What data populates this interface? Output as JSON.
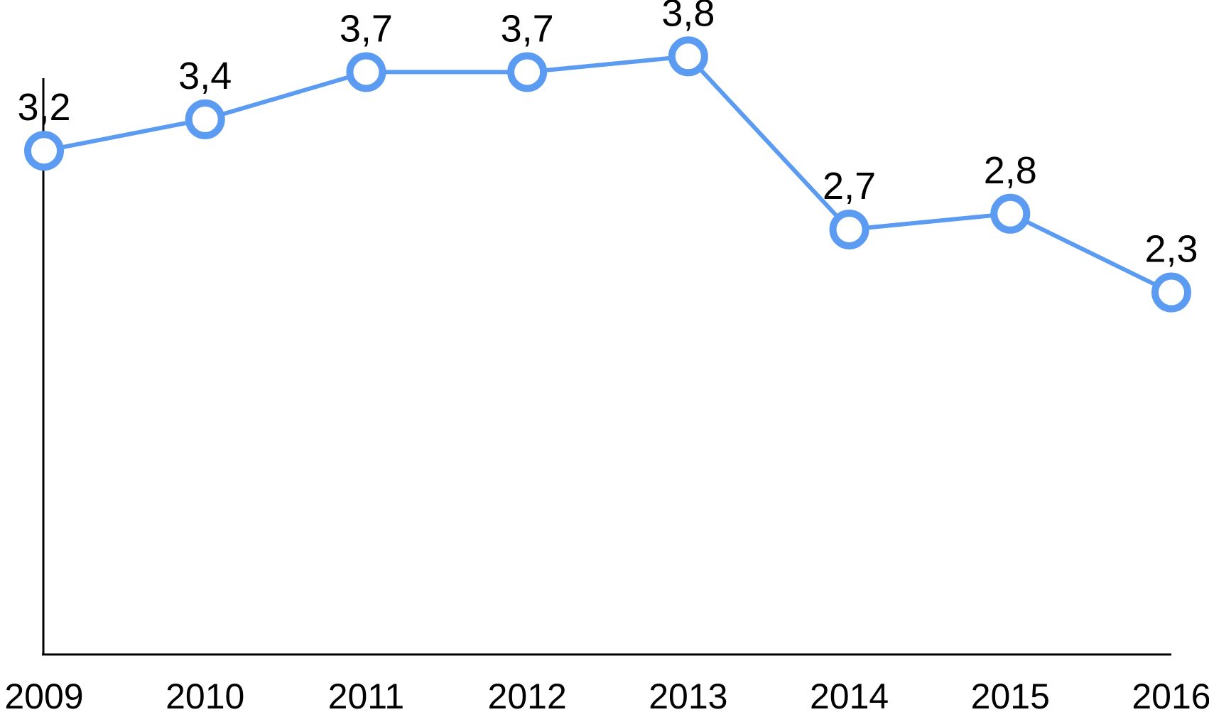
{
  "chart_data": {
    "type": "line",
    "categories": [
      "2009",
      "2010",
      "2011",
      "2012",
      "2013",
      "2014",
      "2015",
      "2016"
    ],
    "data_labels": [
      "3,2",
      "3,4",
      "3,7",
      "3,7",
      "3,8",
      "2,7",
      "2,8",
      "2,3"
    ],
    "series": [
      {
        "values": [
          3.2,
          3.4,
          3.7,
          3.7,
          3.8,
          2.7,
          2.8,
          2.3
        ],
        "color": "#5B9CF2"
      }
    ],
    "title": "",
    "xlabel": "",
    "ylabel": "",
    "ylim": [
      0,
      4
    ],
    "grid": false,
    "legend": "none"
  }
}
